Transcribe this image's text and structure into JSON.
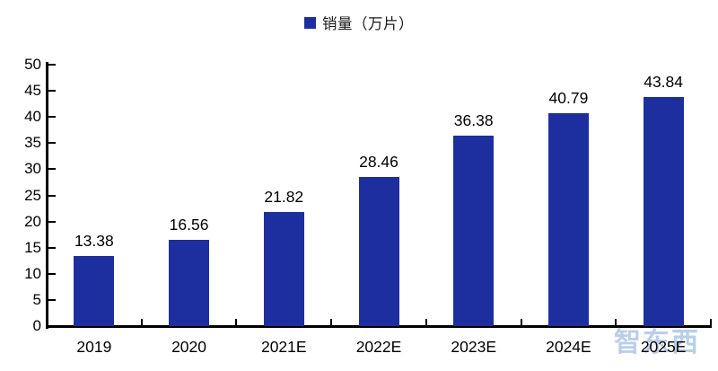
{
  "chart_data": {
    "type": "bar",
    "title": "",
    "legend": {
      "label": "销量（万片）",
      "position": "top-center"
    },
    "categories": [
      "2019",
      "2020",
      "2021E",
      "2022E",
      "2023E",
      "2024E",
      "2025E"
    ],
    "values": [
      13.38,
      16.56,
      21.82,
      28.46,
      36.38,
      40.79,
      43.84
    ],
    "data_labels": [
      "13.38",
      "16.56",
      "21.82",
      "28.46",
      "36.38",
      "40.79",
      "43.84"
    ],
    "xlabel": "",
    "ylabel": "",
    "ylim": [
      0,
      50
    ],
    "ytick_interval": 5,
    "yticks": [
      "0",
      "5",
      "10",
      "15",
      "20",
      "25",
      "30",
      "35",
      "40",
      "45",
      "50"
    ],
    "grid": false,
    "colors": {
      "bar": "#1D2F9E",
      "axis": "#000000",
      "text": "#000000",
      "watermark": "#A9C2E4"
    }
  },
  "watermark": {
    "text": "智东西"
  }
}
